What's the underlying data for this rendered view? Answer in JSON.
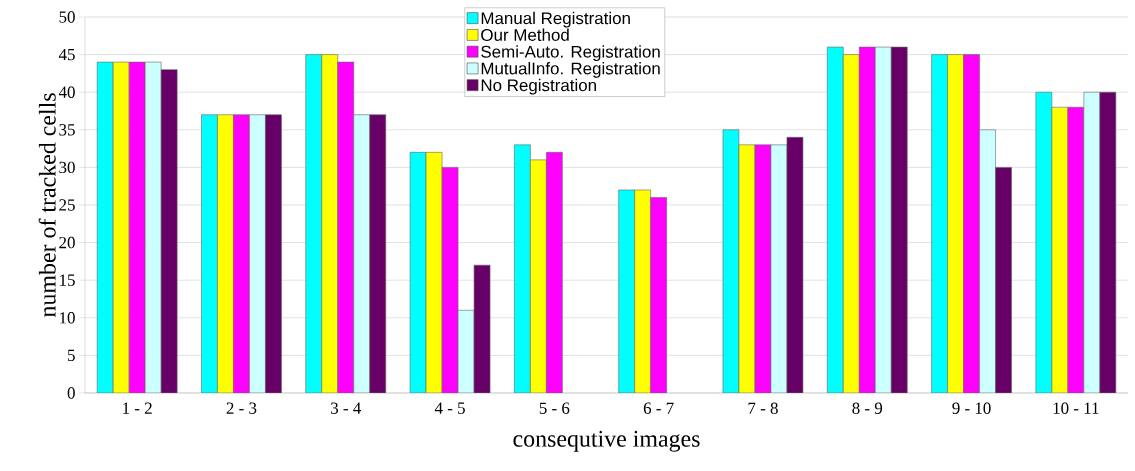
{
  "chart_data": {
    "type": "bar",
    "xlabel": "consequtive images",
    "ylabel": "number of tracked cells",
    "categories": [
      "1 - 2",
      "2 - 3",
      "3 - 4",
      "4 - 5",
      "5 - 6",
      "6 - 7",
      "7 - 8",
      "8 - 9",
      "9 - 10",
      "10 - 11"
    ],
    "series": [
      {
        "name": "Manual Registration",
        "color": "#00ffff",
        "values": [
          44,
          37,
          45,
          32,
          33,
          27,
          35,
          46,
          45,
          40
        ]
      },
      {
        "name": "Our Method",
        "color": "#ffff00",
        "values": [
          44,
          37,
          45,
          32,
          31,
          27,
          33,
          45,
          45,
          38
        ]
      },
      {
        "name": "Semi-Auto. Registration",
        "color": "#ff00ff",
        "values": [
          44,
          37,
          44,
          30,
          32,
          26,
          33,
          46,
          45,
          38
        ]
      },
      {
        "name": "MutualInfo. Registration",
        "color": "#ccffff",
        "values": [
          44,
          37,
          37,
          11,
          null,
          null,
          33,
          46,
          35,
          40
        ]
      },
      {
        "name": "No Registration",
        "color": "#660066",
        "values": [
          43,
          37,
          37,
          17,
          null,
          null,
          34,
          46,
          30,
          40
        ]
      }
    ],
    "ylim": [
      0,
      50
    ],
    "yticks": [
      0,
      5,
      10,
      15,
      20,
      25,
      30,
      35,
      40,
      45,
      50
    ],
    "grid": "y",
    "legend": "top"
  }
}
